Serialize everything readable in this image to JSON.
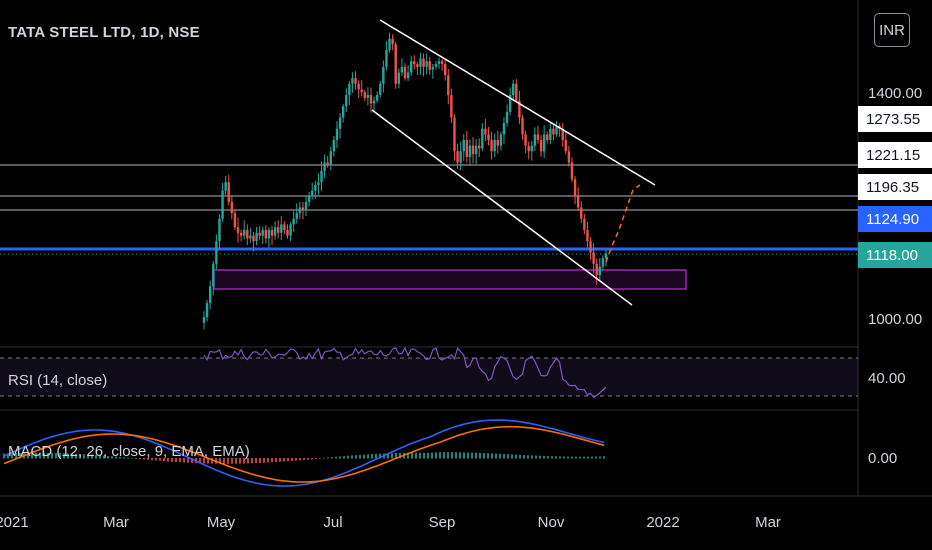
{
  "symbol_title": "TATA STEEL LTD, 1D, NSE",
  "currency": "INR",
  "price_axis": {
    "ticks": [
      "1400.00",
      "1000.00"
    ],
    "labels": [
      {
        "value": "1273.55",
        "style": "white"
      },
      {
        "value": "1221.15",
        "style": "white"
      },
      {
        "value": "1196.35",
        "style": "white"
      },
      {
        "value": "1124.90",
        "style": "blue"
      },
      {
        "value": "1118.00",
        "style": "teal"
      }
    ]
  },
  "time_axis": [
    "2021",
    "Mar",
    "May",
    "Jul",
    "Sep",
    "Nov",
    "2022",
    "Mar"
  ],
  "indicators": {
    "rsi": {
      "label": "RSI (14, close)",
      "axis_value": "40.00"
    },
    "macd": {
      "label": "MACD (12, 26, close, 9, EMA, EMA)",
      "axis_value": "0.00"
    }
  },
  "colors": {
    "up": "#26a69a",
    "down": "#ef5350",
    "blue_line": "#2962ff",
    "box": "#9c27b0",
    "rsi_line": "#7e57c2",
    "macd_line": "#2962ff",
    "signal_line": "#ff6d00"
  },
  "chart_data": {
    "type": "candlestick",
    "closes": [
      1005,
      1030,
      1060,
      1100,
      1140,
      1180,
      1230,
      1245,
      1210,
      1190,
      1165,
      1155,
      1150,
      1160,
      1145,
      1150,
      1140,
      1155,
      1150,
      1160,
      1145,
      1160,
      1150,
      1165,
      1155,
      1170,
      1160,
      1150,
      1170,
      1180,
      1190,
      1200,
      1195,
      1210,
      1220,
      1230,
      1240,
      1245,
      1265,
      1280,
      1275,
      1300,
      1320,
      1340,
      1360,
      1380,
      1400,
      1420,
      1430,
      1420,
      1410,
      1405,
      1395,
      1400,
      1385,
      1390,
      1400,
      1420,
      1450,
      1480,
      1500,
      1490,
      1420,
      1440,
      1450,
      1430,
      1440,
      1460,
      1455,
      1450,
      1465,
      1450,
      1460,
      1445,
      1450,
      1455,
      1460,
      1455,
      1435,
      1400,
      1360,
      1300,
      1280,
      1300,
      1320,
      1290,
      1310,
      1295,
      1310,
      1305,
      1340,
      1330,
      1320,
      1300,
      1320,
      1310,
      1330,
      1350,
      1370,
      1400,
      1420,
      1390,
      1360,
      1330,
      1310,
      1300,
      1310,
      1330,
      1320,
      1300,
      1330,
      1320,
      1340,
      1330,
      1345,
      1340,
      1320,
      1300,
      1280,
      1250,
      1220,
      1200,
      1180,
      1160,
      1140,
      1120,
      1100,
      1080,
      1095,
      1110,
      1118
    ],
    "channel_upper": [
      [
        380,
        20
      ],
      [
        655,
        185
      ]
    ],
    "channel_lower": [
      [
        372,
        110
      ],
      [
        632,
        305
      ]
    ],
    "horizontal_levels": [
      "1273.55",
      "1221.15",
      "1196.35",
      "1124.90"
    ],
    "support_zone": {
      "from": 1070,
      "to": 1098
    }
  }
}
